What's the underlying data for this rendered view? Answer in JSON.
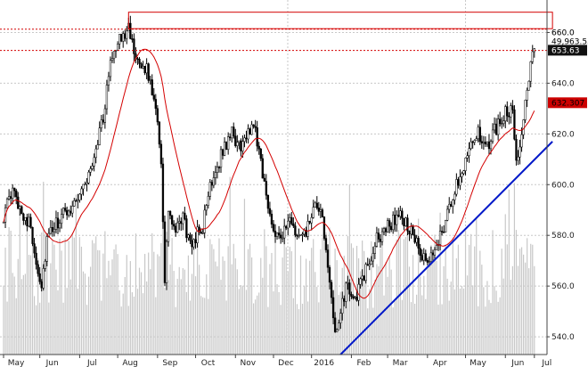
{
  "chart_data": {
    "type": "candlestick",
    "title": "",
    "xlabel": "",
    "ylabel": "",
    "ylim": [
      533,
      670
    ],
    "grid": true,
    "y_ticks": [
      540,
      560,
      580,
      600,
      620,
      640,
      660
    ],
    "y_tick_labels": [
      "540.0",
      "560.0",
      "580.0",
      "600.0",
      "620.0",
      "640.0",
      "660.0"
    ],
    "x_month_labels": [
      "May",
      "Jun",
      "Jul",
      "Aug",
      "Sep",
      "Oct",
      "Nov",
      "Dec",
      "2016",
      "Feb",
      "Mar",
      "Apr",
      "May",
      "Jun",
      "Jul"
    ],
    "price_path": [
      {
        "i": 0,
        "p": 588
      },
      {
        "i": 5,
        "p": 597
      },
      {
        "i": 10,
        "p": 590
      },
      {
        "i": 15,
        "p": 583
      },
      {
        "i": 18,
        "p": 570
      },
      {
        "i": 21,
        "p": 560
      },
      {
        "i": 24,
        "p": 578
      },
      {
        "i": 28,
        "p": 583
      },
      {
        "i": 33,
        "p": 588
      },
      {
        "i": 38,
        "p": 592
      },
      {
        "i": 43,
        "p": 598
      },
      {
        "i": 48,
        "p": 605
      },
      {
        "i": 52,
        "p": 618
      },
      {
        "i": 56,
        "p": 630
      },
      {
        "i": 59,
        "p": 650
      },
      {
        "i": 62,
        "p": 655
      },
      {
        "i": 66,
        "p": 658
      },
      {
        "i": 69,
        "p": 665
      },
      {
        "i": 72,
        "p": 650
      },
      {
        "i": 75,
        "p": 645
      },
      {
        "i": 78,
        "p": 647
      },
      {
        "i": 81,
        "p": 640
      },
      {
        "i": 84,
        "p": 632
      },
      {
        "i": 87,
        "p": 610
      },
      {
        "i": 89,
        "p": 560
      },
      {
        "i": 91,
        "p": 590
      },
      {
        "i": 95,
        "p": 580
      },
      {
        "i": 99,
        "p": 588
      },
      {
        "i": 103,
        "p": 575
      },
      {
        "i": 106,
        "p": 580
      },
      {
        "i": 110,
        "p": 583
      },
      {
        "i": 114,
        "p": 600
      },
      {
        "i": 118,
        "p": 608
      },
      {
        "i": 122,
        "p": 615
      },
      {
        "i": 126,
        "p": 620
      },
      {
        "i": 130,
        "p": 615
      },
      {
        "i": 134,
        "p": 618
      },
      {
        "i": 138,
        "p": 625
      },
      {
        "i": 142,
        "p": 610
      },
      {
        "i": 146,
        "p": 590
      },
      {
        "i": 150,
        "p": 582
      },
      {
        "i": 154,
        "p": 580
      },
      {
        "i": 158,
        "p": 585
      },
      {
        "i": 162,
        "p": 580
      },
      {
        "i": 165,
        "p": 578
      },
      {
        "i": 169,
        "p": 585
      },
      {
        "i": 173,
        "p": 592
      },
      {
        "i": 176,
        "p": 585
      },
      {
        "i": 179,
        "p": 570
      },
      {
        "i": 182,
        "p": 545
      },
      {
        "i": 184,
        "p": 540
      },
      {
        "i": 187,
        "p": 555
      },
      {
        "i": 190,
        "p": 560
      },
      {
        "i": 194,
        "p": 555
      },
      {
        "i": 198,
        "p": 562
      },
      {
        "i": 202,
        "p": 570
      },
      {
        "i": 206,
        "p": 578
      },
      {
        "i": 210,
        "p": 582
      },
      {
        "i": 214,
        "p": 585
      },
      {
        "i": 218,
        "p": 588
      },
      {
        "i": 222,
        "p": 585
      },
      {
        "i": 226,
        "p": 580
      },
      {
        "i": 230,
        "p": 572
      },
      {
        "i": 234,
        "p": 568
      },
      {
        "i": 238,
        "p": 575
      },
      {
        "i": 242,
        "p": 582
      },
      {
        "i": 246,
        "p": 590
      },
      {
        "i": 250,
        "p": 600
      },
      {
        "i": 254,
        "p": 608
      },
      {
        "i": 258,
        "p": 618
      },
      {
        "i": 262,
        "p": 620
      },
      {
        "i": 266,
        "p": 613
      },
      {
        "i": 270,
        "p": 620
      },
      {
        "i": 274,
        "p": 625
      },
      {
        "i": 278,
        "p": 630
      },
      {
        "i": 281,
        "p": 628
      },
      {
        "i": 283,
        "p": 612
      },
      {
        "i": 285,
        "p": 615
      },
      {
        "i": 287,
        "p": 628
      },
      {
        "i": 290,
        "p": 642
      },
      {
        "i": 293,
        "p": 653.63
      }
    ],
    "series": [
      {
        "name": "",
        "color": "#d40000",
        "values": "moving-average"
      },
      {
        "name": "",
        "color": "#0018c8",
        "values": "trendline"
      }
    ],
    "ma_period": 20,
    "trendline": {
      "start_i": 186,
      "start_p": 533,
      "end_i": 303,
      "end_p": 617
    },
    "resistance_levels": [
      661.3,
      652.9
    ],
    "resistance_box": {
      "p_top": 668,
      "p_bottom": 661.5,
      "start_i": 69,
      "end_i": 303
    },
    "value_tags": [
      {
        "label": "660.0",
        "value": 660,
        "bg": "#ffffff",
        "fg": "#222222"
      },
      {
        "label": "49,963.55",
        "value": 656.5,
        "bg": "#ffffff",
        "fg": "#000000"
      },
      {
        "label": "653.63",
        "value": 653.0,
        "bg": "#111111",
        "fg": "#ffffff"
      },
      {
        "label": "632.307",
        "value": 632.3,
        "bg": "#cc0000",
        "fg": "#000000"
      }
    ],
    "volume_color": "#c8c8c8",
    "candle_color": "#000000",
    "grid_color": "#c8c8c8"
  }
}
